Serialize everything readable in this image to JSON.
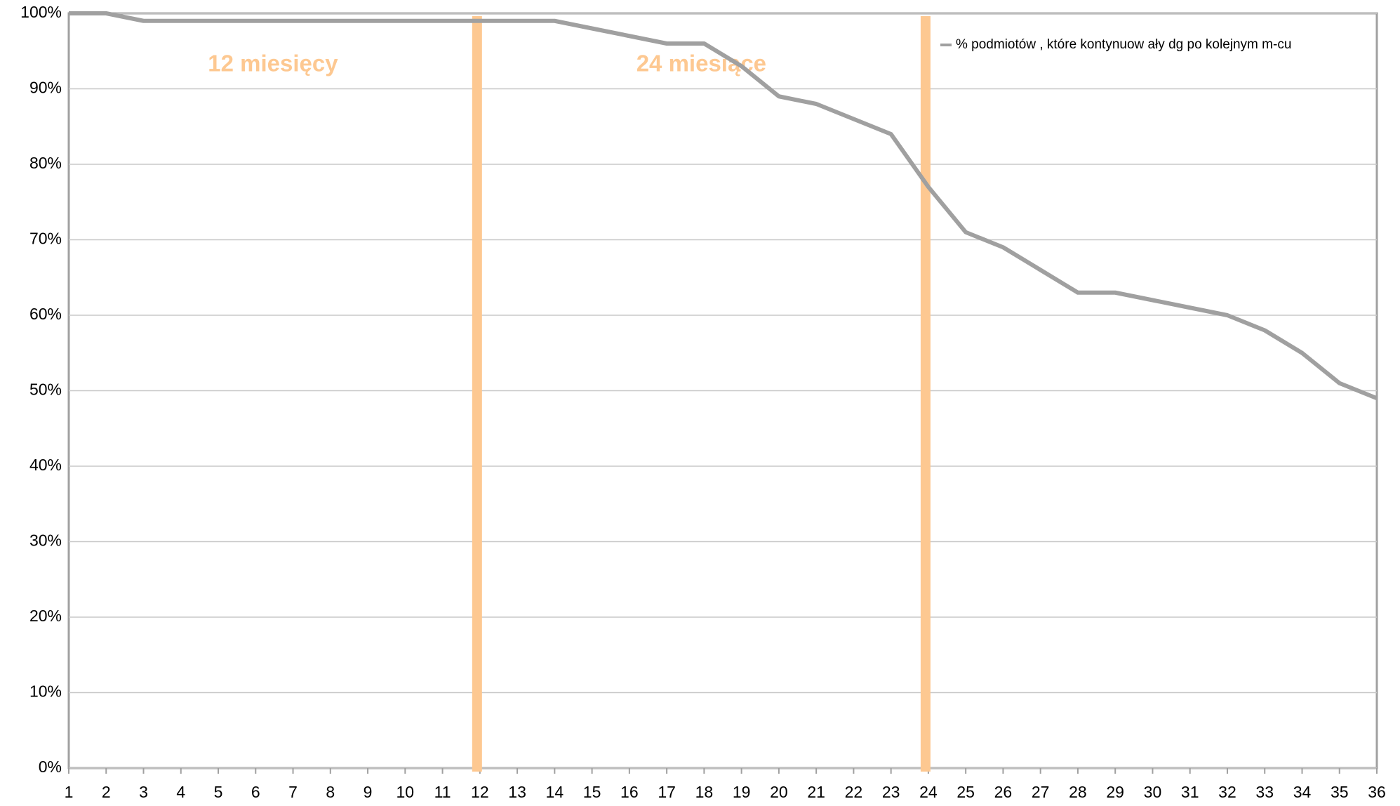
{
  "chart_data": {
    "type": "line",
    "x": [
      1,
      2,
      3,
      4,
      5,
      6,
      7,
      8,
      9,
      10,
      11,
      12,
      13,
      14,
      15,
      16,
      17,
      18,
      19,
      20,
      21,
      22,
      23,
      24,
      25,
      26,
      27,
      28,
      29,
      30,
      31,
      32,
      33,
      34,
      35,
      36
    ],
    "series": [
      {
        "name": "% podmiotów , które kontynuow ały dg po kolejnym m-cu",
        "color": "#a0a0a0",
        "values": [
          100,
          100,
          99,
          99,
          99,
          99,
          99,
          99,
          99,
          99,
          99,
          99,
          99,
          99,
          98,
          97,
          96,
          96,
          93,
          89,
          88,
          86,
          84,
          77,
          71,
          69,
          66,
          63,
          63,
          62,
          61,
          60,
          58,
          55,
          51,
          49
        ]
      }
    ],
    "xlim": [
      1,
      36
    ],
    "xticks": [
      1,
      2,
      3,
      4,
      5,
      6,
      7,
      8,
      9,
      10,
      11,
      12,
      13,
      14,
      15,
      16,
      17,
      18,
      19,
      20,
      21,
      22,
      23,
      24,
      25,
      26,
      27,
      28,
      29,
      30,
      31,
      32,
      33,
      34,
      35,
      36
    ],
    "ylim": [
      0,
      100
    ],
    "yticks": [
      {
        "value": 0,
        "label": "0%"
      },
      {
        "value": 10,
        "label": "10%"
      },
      {
        "value": 20,
        "label": "20%"
      },
      {
        "value": 30,
        "label": "30%"
      },
      {
        "value": 40,
        "label": "40%"
      },
      {
        "value": 50,
        "label": "50%"
      },
      {
        "value": 60,
        "label": "60%"
      },
      {
        "value": 70,
        "label": "70%"
      },
      {
        "value": 80,
        "label": "80%"
      },
      {
        "value": 90,
        "label": "90%"
      },
      {
        "value": 100,
        "label": "100%"
      }
    ],
    "grid": true,
    "legend": "top-right",
    "vlines": [
      12,
      24
    ],
    "vline_color": "#fdc891",
    "annotations": [
      "12 miesięcy",
      "24 miesiące"
    ]
  }
}
